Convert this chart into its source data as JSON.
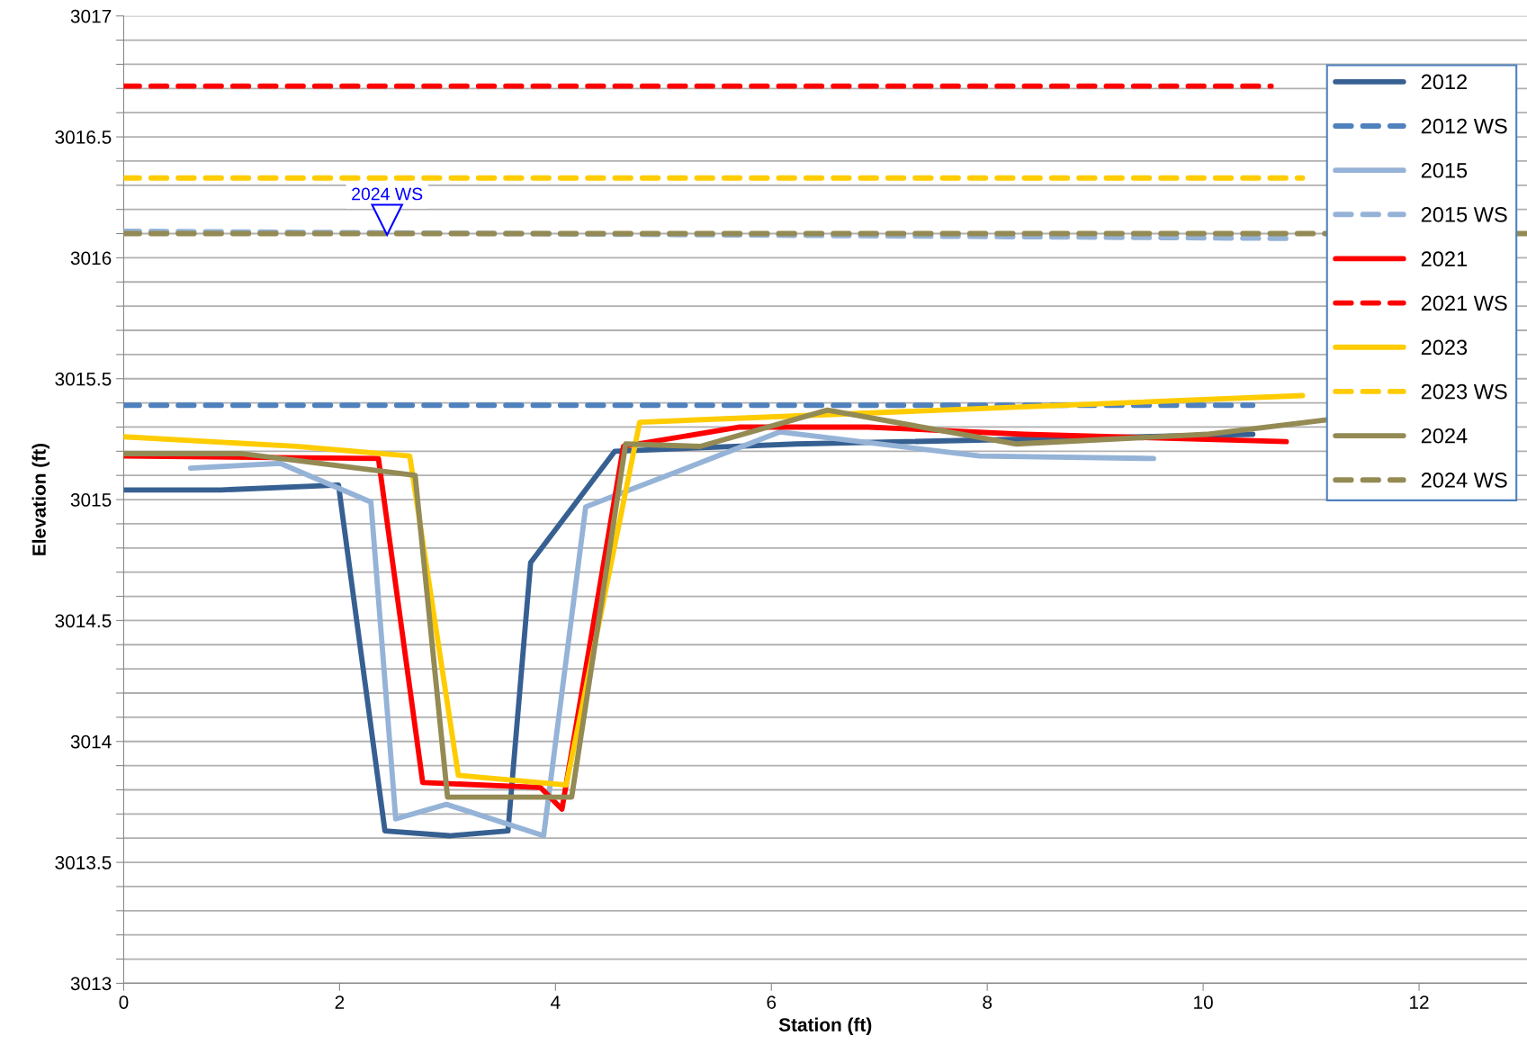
{
  "chart_data": {
    "type": "line",
    "xlabel": "Station (ft)",
    "ylabel": "Elevation (ft)",
    "xlim": [
      0,
      13
    ],
    "xticks": [
      0,
      2,
      4,
      6,
      8,
      10,
      12
    ],
    "ylim": [
      3013,
      3017
    ],
    "yticks": [
      3013,
      {
        "value": 3013.1,
        "label": null
      },
      {
        "value": 3013.2,
        "label": null
      },
      {
        "value": 3013.3,
        "label": null
      },
      {
        "value": 3013.4,
        "label": null
      },
      3013.5,
      {
        "value": 3013.6,
        "label": null
      },
      {
        "value": 3013.7,
        "label": null
      },
      {
        "value": 3013.8,
        "label": null
      },
      {
        "value": 3013.9,
        "label": null
      },
      3014,
      {
        "value": 3014.1,
        "label": null
      },
      {
        "value": 3014.2,
        "label": null
      },
      {
        "value": 3014.3,
        "label": null
      },
      {
        "value": 3014.4,
        "label": null
      },
      3014.5,
      {
        "value": 3014.6,
        "label": null
      },
      {
        "value": 3014.7,
        "label": null
      },
      {
        "value": 3014.8,
        "label": null
      },
      {
        "value": 3014.9,
        "label": null
      },
      3015,
      {
        "value": 3015.1,
        "label": null
      },
      {
        "value": 3015.2,
        "label": null
      },
      {
        "value": 3015.3,
        "label": null
      },
      {
        "value": 3015.4,
        "label": null
      },
      3015.5,
      {
        "value": 3015.6,
        "label": null
      },
      {
        "value": 3015.7,
        "label": null
      },
      {
        "value": 3015.8,
        "label": null
      },
      {
        "value": 3015.9,
        "label": null
      },
      3016,
      {
        "value": 3016.1,
        "label": null
      },
      {
        "value": 3016.2,
        "label": null
      },
      {
        "value": 3016.3,
        "label": null
      },
      {
        "value": 3016.4,
        "label": null
      },
      3016.5,
      {
        "value": 3016.6,
        "label": null
      },
      {
        "value": 3016.7,
        "label": null
      },
      {
        "value": 3016.8,
        "label": null
      },
      {
        "value": 3016.9,
        "label": null
      },
      3017
    ],
    "grid": "y",
    "legend": "top right",
    "marker": "none",
    "series": [
      {
        "name": "2012",
        "color": "#376092",
        "line_style": "solid",
        "x": [
          0,
          0.9,
          1.99,
          2.42,
          3.02,
          3.56,
          3.77,
          4.55,
          6.23,
          10.46
        ],
        "values": [
          3015.04,
          3015.04,
          3015.06,
          3013.63,
          3013.61,
          3013.63,
          3014.74,
          3015.2,
          3015.23,
          3015.27
        ]
      },
      {
        "name": "2012 WS",
        "color": "#4f81bd",
        "line_style": "dashed",
        "x": [
          0,
          10.46
        ],
        "values": [
          3015.39,
          3015.39
        ]
      },
      {
        "name": "2015",
        "color": "#95b3d7",
        "line_style": "solid",
        "x": [
          0.62,
          1.45,
          2.29,
          2.52,
          2.99,
          3.89,
          4.28,
          6.08,
          7.93,
          9.54
        ],
        "values": [
          3015.13,
          3015.15,
          3014.99,
          3013.68,
          3013.74,
          3013.61,
          3014.97,
          3015.28,
          3015.18,
          3015.17
        ]
      },
      {
        "name": "2015 WS",
        "color": "#95b3d7",
        "line_style": "dashed",
        "x": [
          0,
          10.82
        ],
        "values": [
          3016.11,
          3016.08
        ]
      },
      {
        "name": "2021",
        "color": "#ff0000",
        "line_style": "solid",
        "x": [
          0,
          2.36,
          2.77,
          3.86,
          4.06,
          4.63,
          5.71,
          6.9,
          8.34,
          10.77
        ],
        "values": [
          3015.18,
          3015.17,
          3013.83,
          3013.81,
          3013.72,
          3015.22,
          3015.3,
          3015.3,
          3015.27,
          3015.24
        ]
      },
      {
        "name": "2021 WS",
        "color": "#ff0000",
        "line_style": "dashed",
        "x": [
          0,
          10.63
        ],
        "values": [
          3016.71,
          3016.71
        ]
      },
      {
        "name": "2023",
        "color": "#ffcc00",
        "line_style": "solid",
        "x": [
          0,
          1.6,
          2.65,
          3.1,
          4.1,
          4.78,
          10.92
        ],
        "values": [
          3015.26,
          3015.22,
          3015.18,
          3013.86,
          3013.82,
          3015.32,
          3015.43
        ]
      },
      {
        "name": "2023 WS",
        "color": "#ffcc00",
        "line_style": "dashed",
        "x": [
          0,
          10.92
        ],
        "values": [
          3016.33,
          3016.33
        ]
      },
      {
        "name": "2024",
        "color": "#948a54",
        "line_style": "solid",
        "x": [
          0,
          1.1,
          2.7,
          3.0,
          4.15,
          4.65,
          5.34,
          6.52,
          8.27,
          10.03,
          11.15
        ],
        "values": [
          3015.19,
          3015.19,
          3015.1,
          3013.77,
          3013.77,
          3015.23,
          3015.22,
          3015.37,
          3015.23,
          3015.27,
          3015.33
        ]
      },
      {
        "name": "2024 WS",
        "color": "#948a54",
        "line_style": "dashed",
        "x": [
          0,
          13
        ],
        "values": [
          3016.1,
          3016.1
        ]
      }
    ],
    "annotations": [
      {
        "text": "2024 WS",
        "x": 2.44,
        "y": 3016.1
      }
    ]
  }
}
